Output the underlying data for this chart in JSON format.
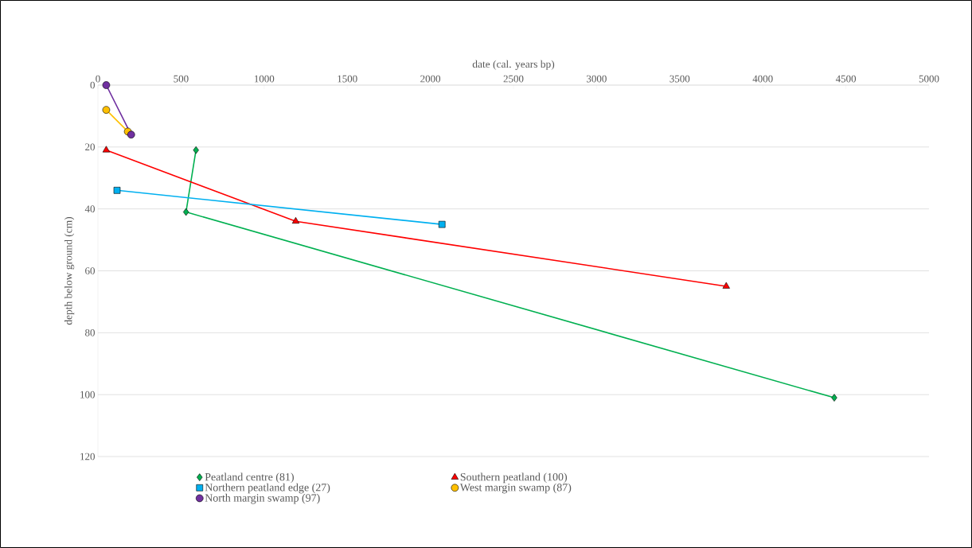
{
  "chart_data": {
    "type": "line",
    "xlabel": "date (cal. years bp)",
    "ylabel": "depth below ground (cm)",
    "xlim": [
      0,
      5000
    ],
    "xticks": [
      0,
      500,
      1000,
      1500,
      2000,
      2500,
      3000,
      3500,
      4000,
      4500,
      5000
    ],
    "ylim": [
      120,
      0
    ],
    "yticks": [
      0,
      20,
      40,
      60,
      80,
      100,
      120
    ],
    "grid": "y",
    "legend": "bottom",
    "series": [
      {
        "name": "Peatland centre (81)",
        "color": "#00b050",
        "marker": "diamond",
        "x": [
          590,
          530,
          4430
        ],
        "values": [
          21,
          41,
          101
        ]
      },
      {
        "name": "Southern peatland (100)",
        "color": "#ff0000",
        "marker": "triangle",
        "x": [
          50,
          1190,
          3780
        ],
        "values": [
          21,
          44,
          65
        ]
      },
      {
        "name": "Northern peatland edge (27)",
        "color": "#00b0f0",
        "marker": "square",
        "x": [
          115,
          2070
        ],
        "values": [
          34,
          45
        ]
      },
      {
        "name": "West margin swamp (87)",
        "color": "#ffc000",
        "marker": "circle",
        "x": [
          50,
          180
        ],
        "values": [
          8,
          15
        ]
      },
      {
        "name": "North margin swamp (97)",
        "color": "#7030a0",
        "marker": "circle",
        "x": [
          50,
          200
        ],
        "values": [
          0,
          16
        ]
      }
    ]
  }
}
